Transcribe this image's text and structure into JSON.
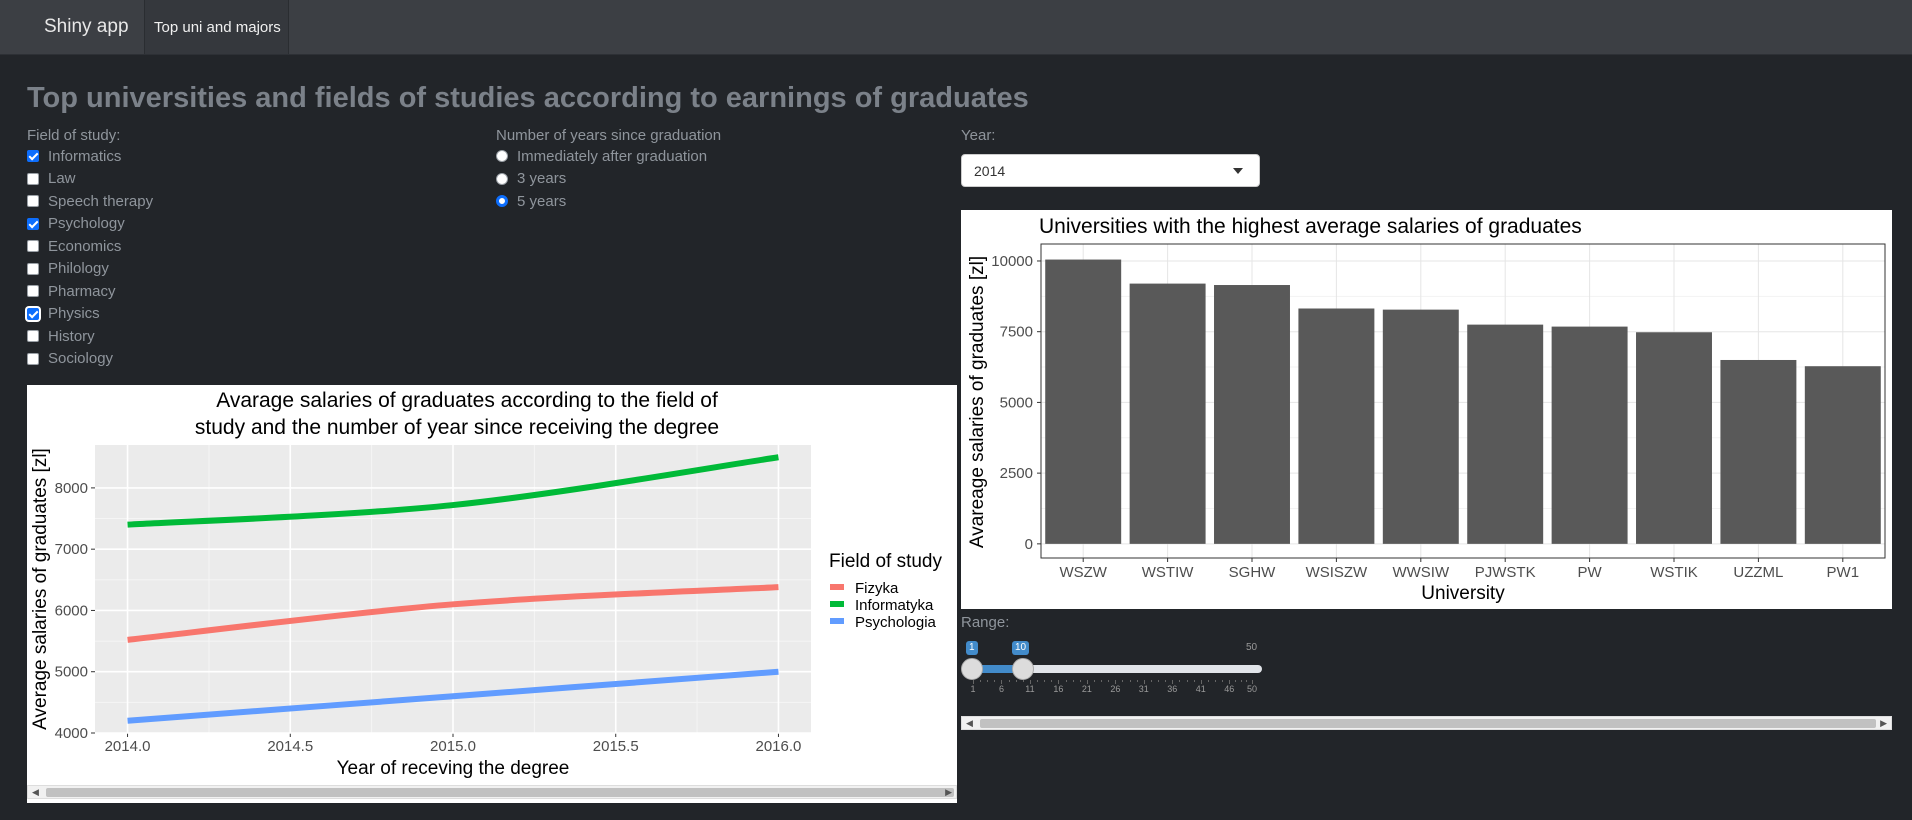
{
  "navbar": {
    "brand": "Shiny app",
    "tab": "Top uni and majors"
  },
  "page_title": "Top universities and fields of studies according to earnings of graduates",
  "field_filter": {
    "label": "Field of study:",
    "options": [
      {
        "label": "Informatics",
        "checked": true
      },
      {
        "label": "Law",
        "checked": false
      },
      {
        "label": "Speech therapy",
        "checked": false
      },
      {
        "label": "Psychology",
        "checked": true
      },
      {
        "label": "Economics",
        "checked": false
      },
      {
        "label": "Philology",
        "checked": false
      },
      {
        "label": "Pharmacy",
        "checked": false
      },
      {
        "label": "Physics",
        "checked": true
      },
      {
        "label": "History",
        "checked": false
      },
      {
        "label": "Sociology",
        "checked": false
      }
    ]
  },
  "years_filter": {
    "label": "Number of years since graduation",
    "options": [
      {
        "label": "Immediately after graduation",
        "checked": false
      },
      {
        "label": "3 years",
        "checked": false
      },
      {
        "label": "5 years",
        "checked": true
      }
    ]
  },
  "year_select": {
    "label": "Year:",
    "value": "2014"
  },
  "range_slider": {
    "label": "Range:",
    "min": 1,
    "max": 50,
    "from": 1,
    "to": 10,
    "tick_labels": [
      "1",
      "6",
      "11",
      "16",
      "21",
      "26",
      "31",
      "36",
      "41",
      "46",
      "50"
    ]
  },
  "colors": {
    "fizyka": "#f8766d",
    "informatyka": "#00ba38",
    "psychologia": "#619cff",
    "bar": "#595959",
    "accent": "#0d6efd"
  },
  "chart_data": [
    {
      "type": "line",
      "title": "Avarage salaries of graduates according to the field of\n study and the number of year since receiving the degree",
      "title_lines": [
        "Avarage salaries of graduates according to the field of",
        "study and the number of year since receiving the degree"
      ],
      "xlabel": "Year of receving the degree",
      "ylabel": "Average salaries of graduates [zl]",
      "xlim": [
        2013.9,
        2016.1
      ],
      "ylim": [
        4000,
        8700
      ],
      "x_ticks": [
        2014.0,
        2014.5,
        2015.0,
        2015.5,
        2016.0
      ],
      "x_tick_labels": [
        "2014.0",
        "2014.5",
        "2015.0",
        "2015.5",
        "2016.0"
      ],
      "y_ticks": [
        4000,
        5000,
        6000,
        7000,
        8000
      ],
      "y_tick_labels": [
        "4000",
        "5000",
        "6000",
        "7000",
        "8000"
      ],
      "legend_title": "Field of study",
      "legend_position": "right",
      "series": [
        {
          "name": "Fizyka",
          "x": [
            2014,
            2015,
            2016
          ],
          "values": [
            5520,
            6100,
            6380
          ]
        },
        {
          "name": "Informatyka",
          "x": [
            2014,
            2015,
            2016
          ],
          "values": [
            7400,
            7720,
            8500
          ]
        },
        {
          "name": "Psychologia",
          "x": [
            2014,
            2015,
            2016
          ],
          "values": [
            4200,
            4600,
            5000
          ]
        }
      ]
    },
    {
      "type": "bar",
      "title": "Universities with the highest average salaries of graduates",
      "xlabel": "University",
      "ylabel": "Avareage salaries of graduates [zl]",
      "ylim": [
        -500,
        10600
      ],
      "y_ticks": [
        0,
        2500,
        5000,
        7500,
        10000
      ],
      "y_tick_labels": [
        "0",
        "2500",
        "5000",
        "7500",
        "10000"
      ],
      "categories": [
        "WSZW",
        "WSTIW",
        "SGHW",
        "WSISZW",
        "WWSIW",
        "PJWSTK",
        "PW",
        "WSTIK",
        "UZZML",
        "PW1"
      ],
      "values": [
        10050,
        9200,
        9150,
        8320,
        8280,
        7750,
        7680,
        7480,
        6500,
        6280
      ]
    }
  ]
}
